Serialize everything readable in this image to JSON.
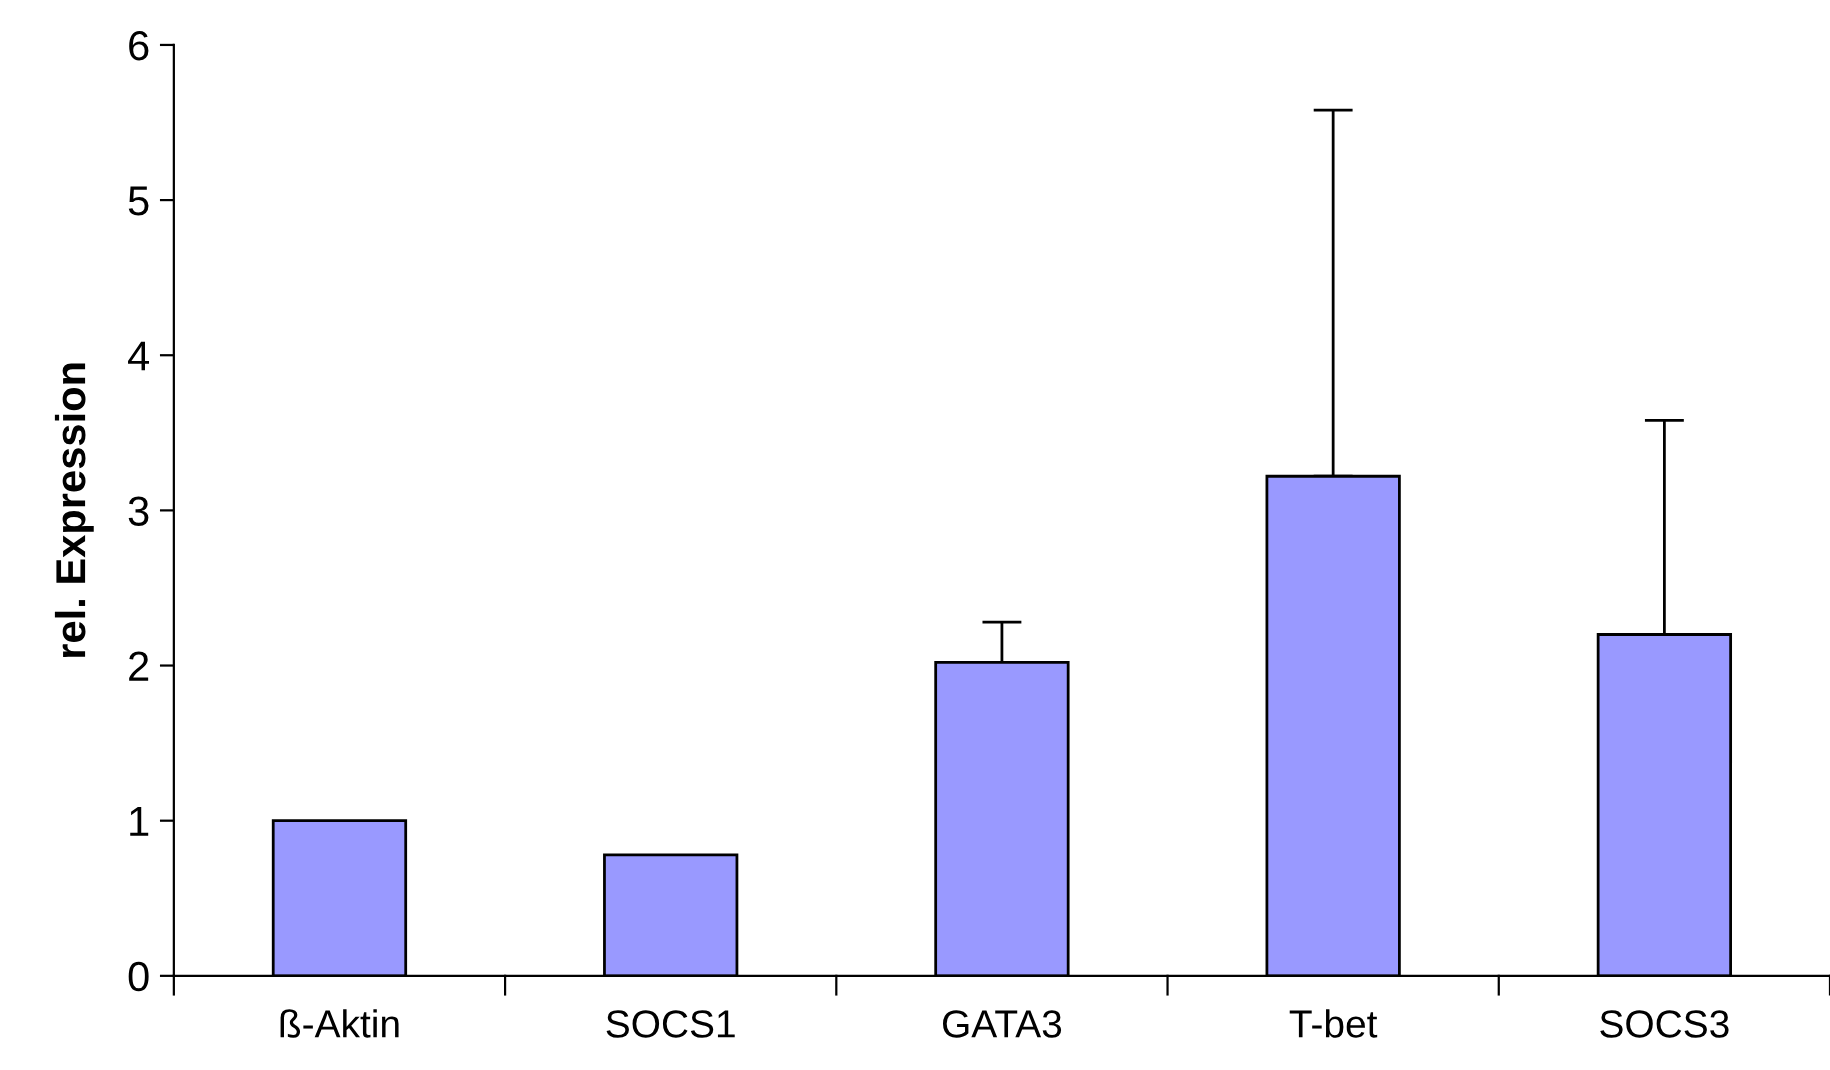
{
  "chart_data": {
    "type": "bar",
    "ylabel": "rel. Expression",
    "categories": [
      "ß-Aktin",
      "SOCS1",
      "GATA3",
      "T-bet",
      "SOCS3"
    ],
    "values": [
      1.0,
      0.78,
      2.02,
      3.22,
      2.2
    ],
    "errors": [
      null,
      null,
      [
        2.02,
        2.28
      ],
      [
        3.22,
        5.58
      ],
      [
        2.2,
        3.58
      ]
    ],
    "color": "#9999ff",
    "ylim": [
      0,
      6
    ],
    "yticks": [
      0,
      1,
      2,
      3,
      4,
      5,
      6
    ],
    "grid": false,
    "legend": false
  }
}
